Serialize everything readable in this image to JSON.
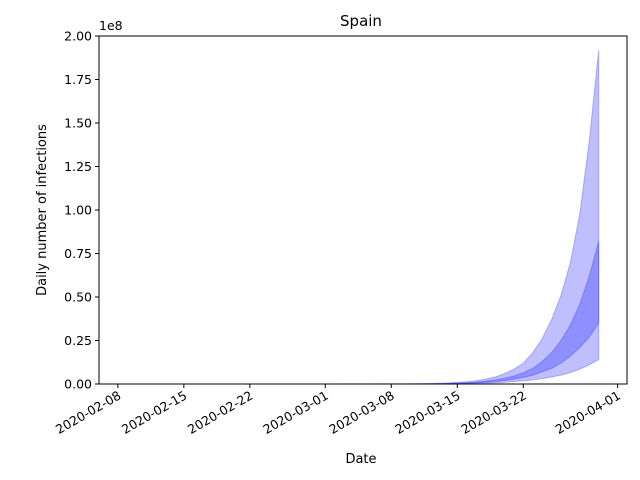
{
  "chart_data": {
    "type": "band",
    "title": "Spain",
    "x_label": "Date",
    "y_label": "Daily number of infections",
    "y_offset_label": "1e8",
    "x": [
      "2020-02-09",
      "2020-03-01",
      "2020-03-10",
      "2020-03-12",
      "2020-03-13",
      "2020-03-14",
      "2020-03-15",
      "2020-03-16",
      "2020-03-17",
      "2020-03-18",
      "2020-03-19",
      "2020-03-20",
      "2020-03-21",
      "2020-03-22",
      "2020-03-23",
      "2020-03-24",
      "2020-03-25",
      "2020-03-26",
      "2020-03-27",
      "2020-03-28",
      "2020-03-29",
      "2020-03-30"
    ],
    "bands": [
      {
        "color": "#0000ff",
        "opacity": 0.25,
        "lower": [
          0,
          0,
          0.0002,
          0.0007,
          0.001,
          0.0015,
          0.002,
          0.003,
          0.004,
          0.0055,
          0.0075,
          0.01,
          0.014,
          0.018,
          0.024,
          0.031,
          0.04,
          0.051,
          0.066,
          0.085,
          0.11,
          0.14
        ],
        "upper": [
          0,
          0,
          0.001,
          0.003,
          0.004,
          0.006,
          0.009,
          0.013,
          0.019,
          0.028,
          0.04,
          0.06,
          0.085,
          0.12,
          0.18,
          0.26,
          0.37,
          0.51,
          0.7,
          0.98,
          1.4,
          1.92
        ]
      },
      {
        "color": "#0000ff",
        "opacity": 0.25,
        "lower": [
          0,
          0,
          0.0003,
          0.0012,
          0.0017,
          0.0025,
          0.0035,
          0.005,
          0.007,
          0.01,
          0.014,
          0.02,
          0.027,
          0.037,
          0.05,
          0.07,
          0.09,
          0.12,
          0.16,
          0.21,
          0.27,
          0.35
        ],
        "upper": [
          0,
          0,
          0.0005,
          0.0017,
          0.0025,
          0.0035,
          0.005,
          0.008,
          0.011,
          0.016,
          0.023,
          0.033,
          0.046,
          0.065,
          0.09,
          0.13,
          0.18,
          0.25,
          0.34,
          0.46,
          0.62,
          0.82
        ]
      }
    ],
    "xlim": [
      "2020-02-06",
      "2020-04-02"
    ],
    "xticks": [
      "2020-02-08",
      "2020-02-15",
      "2020-02-22",
      "2020-03-01",
      "2020-03-08",
      "2020-03-15",
      "2020-03-22",
      "2020-04-01"
    ],
    "ylim": [
      0,
      2.0
    ],
    "yticks": [
      {
        "value": 0,
        "label": "0.00"
      },
      0.25,
      {
        "value": 0.5,
        "label": "0.50"
      },
      0.75,
      {
        "value": 1.0,
        "label": "1.00"
      },
      1.25,
      {
        "value": 1.5,
        "label": "1.50"
      },
      1.75,
      {
        "value": 2.0,
        "label": "2.00"
      }
    ]
  }
}
